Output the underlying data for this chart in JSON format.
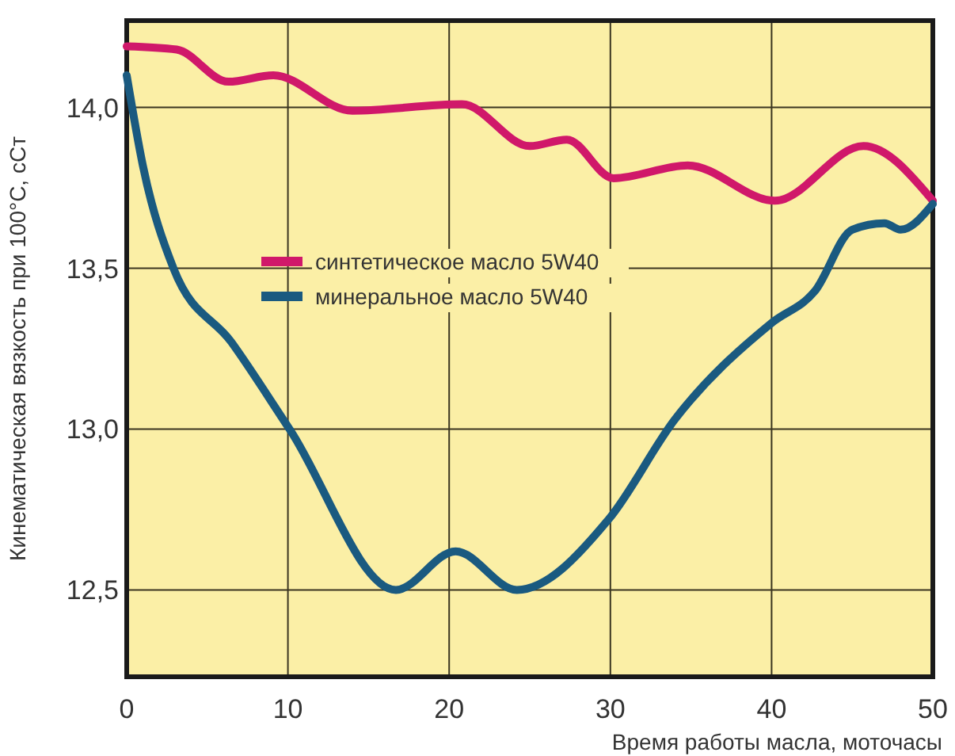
{
  "chart_data": {
    "type": "line",
    "xlabel": "Время работы масла, моточасы",
    "ylabel": "Кинематическая вязкость при 100°C, сСт",
    "xlim": [
      0,
      50
    ],
    "xticks": [
      0,
      10,
      20,
      30,
      40,
      50
    ],
    "ylim": [
      12.23,
      14.27
    ],
    "yticks": [
      {
        "value": 12.5,
        "label": "12,5"
      },
      {
        "value": 13,
        "label": "13,0"
      },
      {
        "value": 13.5,
        "label": "13,5"
      },
      {
        "value": 14,
        "label": "14,0"
      }
    ],
    "grid": true,
    "legend": "left",
    "marker": "none",
    "line_style": "solid",
    "series": [
      {
        "name": "синтетическое масло 5W40",
        "color": "#d0186a",
        "x": [
          0,
          3.1,
          6.3,
          9.1,
          14,
          20.8,
          25,
          27.3,
          30.2,
          34.8,
          40.2,
          45.7,
          50
        ],
        "values": [
          14.19,
          14.18,
          14.08,
          14.1,
          13.99,
          14.01,
          13.88,
          13.9,
          13.78,
          13.82,
          13.71,
          13.88,
          13.71
        ]
      },
      {
        "name": "минеральное масло 5W40",
        "color": "#1a5a80",
        "x": [
          0,
          1,
          2.9,
          6.5,
          10.1,
          16.7,
          20.4,
          24.2,
          29.9,
          34,
          40,
          42.7,
          45,
          47,
          48,
          50
        ],
        "values": [
          14.1,
          13.82,
          13.5,
          13.27,
          13,
          12.5,
          12.62,
          12.5,
          12.72,
          13.03,
          13.33,
          13.43,
          13.62,
          13.64,
          13.62,
          13.7
        ]
      }
    ]
  }
}
